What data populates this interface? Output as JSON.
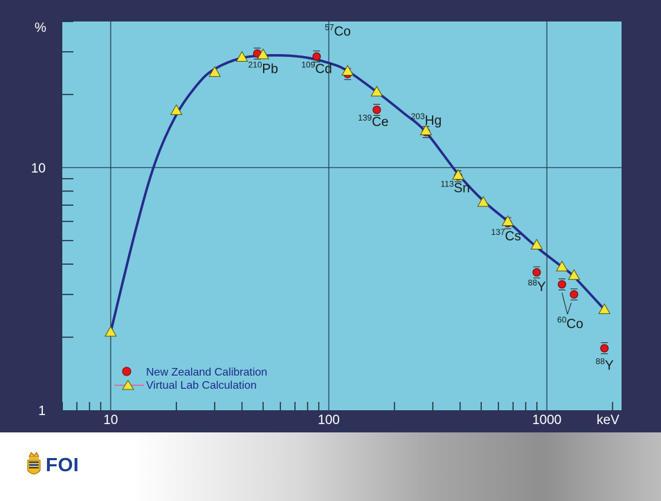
{
  "chart_data": {
    "type": "scatter",
    "title": "",
    "xlabel": "keV",
    "ylabel": "%",
    "xscale": "log",
    "yscale": "log",
    "xlim": [
      6,
      2200
    ],
    "ylim": [
      1,
      40
    ],
    "x_ticks": [
      {
        "value": 10,
        "label": "10"
      },
      {
        "value": 100,
        "label": "100"
      },
      {
        "value": 1000,
        "label": "1000"
      }
    ],
    "y_ticks": [
      {
        "value": 1,
        "label": "1"
      },
      {
        "value": 10,
        "label": "10"
      }
    ],
    "grid": "major decades only",
    "background_color": "#7ecbdf",
    "curve_color": "#252a8a",
    "legend_position": "bottom-left",
    "series": [
      {
        "name": "New Zealand Calibration",
        "marker": "circle",
        "color": "#e0161b",
        "points": [
          {
            "x": 47,
            "y": 29.5
          },
          {
            "x": 88,
            "y": 28.7
          },
          {
            "x": 122,
            "y": 24.3
          },
          {
            "x": 166,
            "y": 17.3
          },
          {
            "x": 279,
            "y": 14.0
          },
          {
            "x": 392,
            "y": 9.2
          },
          {
            "x": 662,
            "y": 5.9
          },
          {
            "x": 898,
            "y": 3.7
          },
          {
            "x": 1173,
            "y": 3.3
          },
          {
            "x": 1332,
            "y": 3.0
          },
          {
            "x": 1836,
            "y": 1.8
          }
        ]
      },
      {
        "name": "Virtual Lab Calculation",
        "marker": "triangle",
        "color": "#f3e634",
        "points": [
          {
            "x": 10,
            "y": 2.1
          },
          {
            "x": 20,
            "y": 17.2
          },
          {
            "x": 30,
            "y": 24.7
          },
          {
            "x": 40,
            "y": 28.5
          },
          {
            "x": 50,
            "y": 29.2
          },
          {
            "x": 122,
            "y": 25.0
          },
          {
            "x": 166,
            "y": 20.5
          },
          {
            "x": 279,
            "y": 14.2
          },
          {
            "x": 392,
            "y": 9.3
          },
          {
            "x": 511,
            "y": 7.2
          },
          {
            "x": 662,
            "y": 6.0
          },
          {
            "x": 898,
            "y": 4.8
          },
          {
            "x": 1173,
            "y": 3.9
          },
          {
            "x": 1332,
            "y": 3.6
          },
          {
            "x": 1836,
            "y": 2.6
          }
        ]
      }
    ],
    "curve": [
      {
        "x": 10,
        "y": 2.1
      },
      {
        "x": 13,
        "y": 5.5
      },
      {
        "x": 16,
        "y": 10.5
      },
      {
        "x": 20,
        "y": 16.5
      },
      {
        "x": 25,
        "y": 22.0
      },
      {
        "x": 30,
        "y": 25.5
      },
      {
        "x": 40,
        "y": 28.3
      },
      {
        "x": 55,
        "y": 29.0
      },
      {
        "x": 75,
        "y": 28.6
      },
      {
        "x": 100,
        "y": 27.0
      },
      {
        "x": 122,
        "y": 25.0
      },
      {
        "x": 166,
        "y": 20.5
      },
      {
        "x": 220,
        "y": 16.8
      },
      {
        "x": 279,
        "y": 14.0
      },
      {
        "x": 392,
        "y": 9.4
      },
      {
        "x": 511,
        "y": 7.3
      },
      {
        "x": 662,
        "y": 6.0
      },
      {
        "x": 898,
        "y": 4.7
      },
      {
        "x": 1173,
        "y": 3.9
      },
      {
        "x": 1332,
        "y": 3.55
      },
      {
        "x": 1836,
        "y": 2.6
      }
    ],
    "annotations": [
      {
        "sup": "210",
        "text": "Pb",
        "x": 50,
        "y": 24.5
      },
      {
        "sup": "109",
        "text": "Cd",
        "x": 88,
        "y": 24.5
      },
      {
        "sup": "57",
        "text": "Co",
        "x": 110,
        "y": 35.0
      },
      {
        "sup": "139",
        "text": "Ce",
        "x": 160,
        "y": 14.8
      },
      {
        "sup": "203",
        "text": "Hg",
        "x": 280,
        "y": 15.0
      },
      {
        "sup": "113",
        "text": "Sn",
        "x": 380,
        "y": 7.9
      },
      {
        "sup": "137",
        "text": "Cs",
        "x": 650,
        "y": 5.0
      },
      {
        "sup": "88",
        "text": "Y",
        "x": 900,
        "y": 3.1
      },
      {
        "sup": "60",
        "text": "Co",
        "x": 1280,
        "y": 2.18
      },
      {
        "sup": "88",
        "text": "Y",
        "x": 1840,
        "y": 1.47
      }
    ]
  },
  "legend": {
    "items": [
      {
        "label": "New Zealand Calibration"
      },
      {
        "label": "Virtual Lab Calculation"
      }
    ]
  },
  "footer": {
    "logo_text": "FOI"
  }
}
